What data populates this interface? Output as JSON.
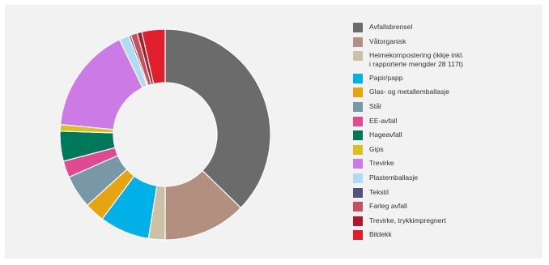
{
  "chart_data": {
    "type": "pie",
    "donut": true,
    "legend_position": "right",
    "categories": [
      "Avfallsbrensel",
      "Våtorganisk",
      "Heimekompostering (ikkje inkl.\ni rapporterte mengder 28 117t)",
      "Papir/papp",
      "Glas- og metallemballasje",
      "Stål",
      "EE-avfall",
      "Hageavfall",
      "Gips",
      "Trevirke",
      "Plastemballasje",
      "Tekstil",
      "Farleg avfall",
      "Trevirke, trykkimpregnert",
      "Bildekk"
    ],
    "values": [
      36.5,
      12.5,
      2.5,
      7.5,
      3.0,
      5.0,
      2.5,
      4.5,
      1.0,
      16.0,
      1.5,
      0.3,
      1.0,
      0.7,
      3.5
    ],
    "colors": [
      "#6b6b6b",
      "#b28f7f",
      "#ccc0a6",
      "#00b0e6",
      "#e6a410",
      "#7898a8",
      "#e04a92",
      "#00785a",
      "#d9c21f",
      "#cc7ae6",
      "#b0dcf2",
      "#54517a",
      "#c8505a",
      "#b0182a",
      "#e01e2c"
    ]
  }
}
